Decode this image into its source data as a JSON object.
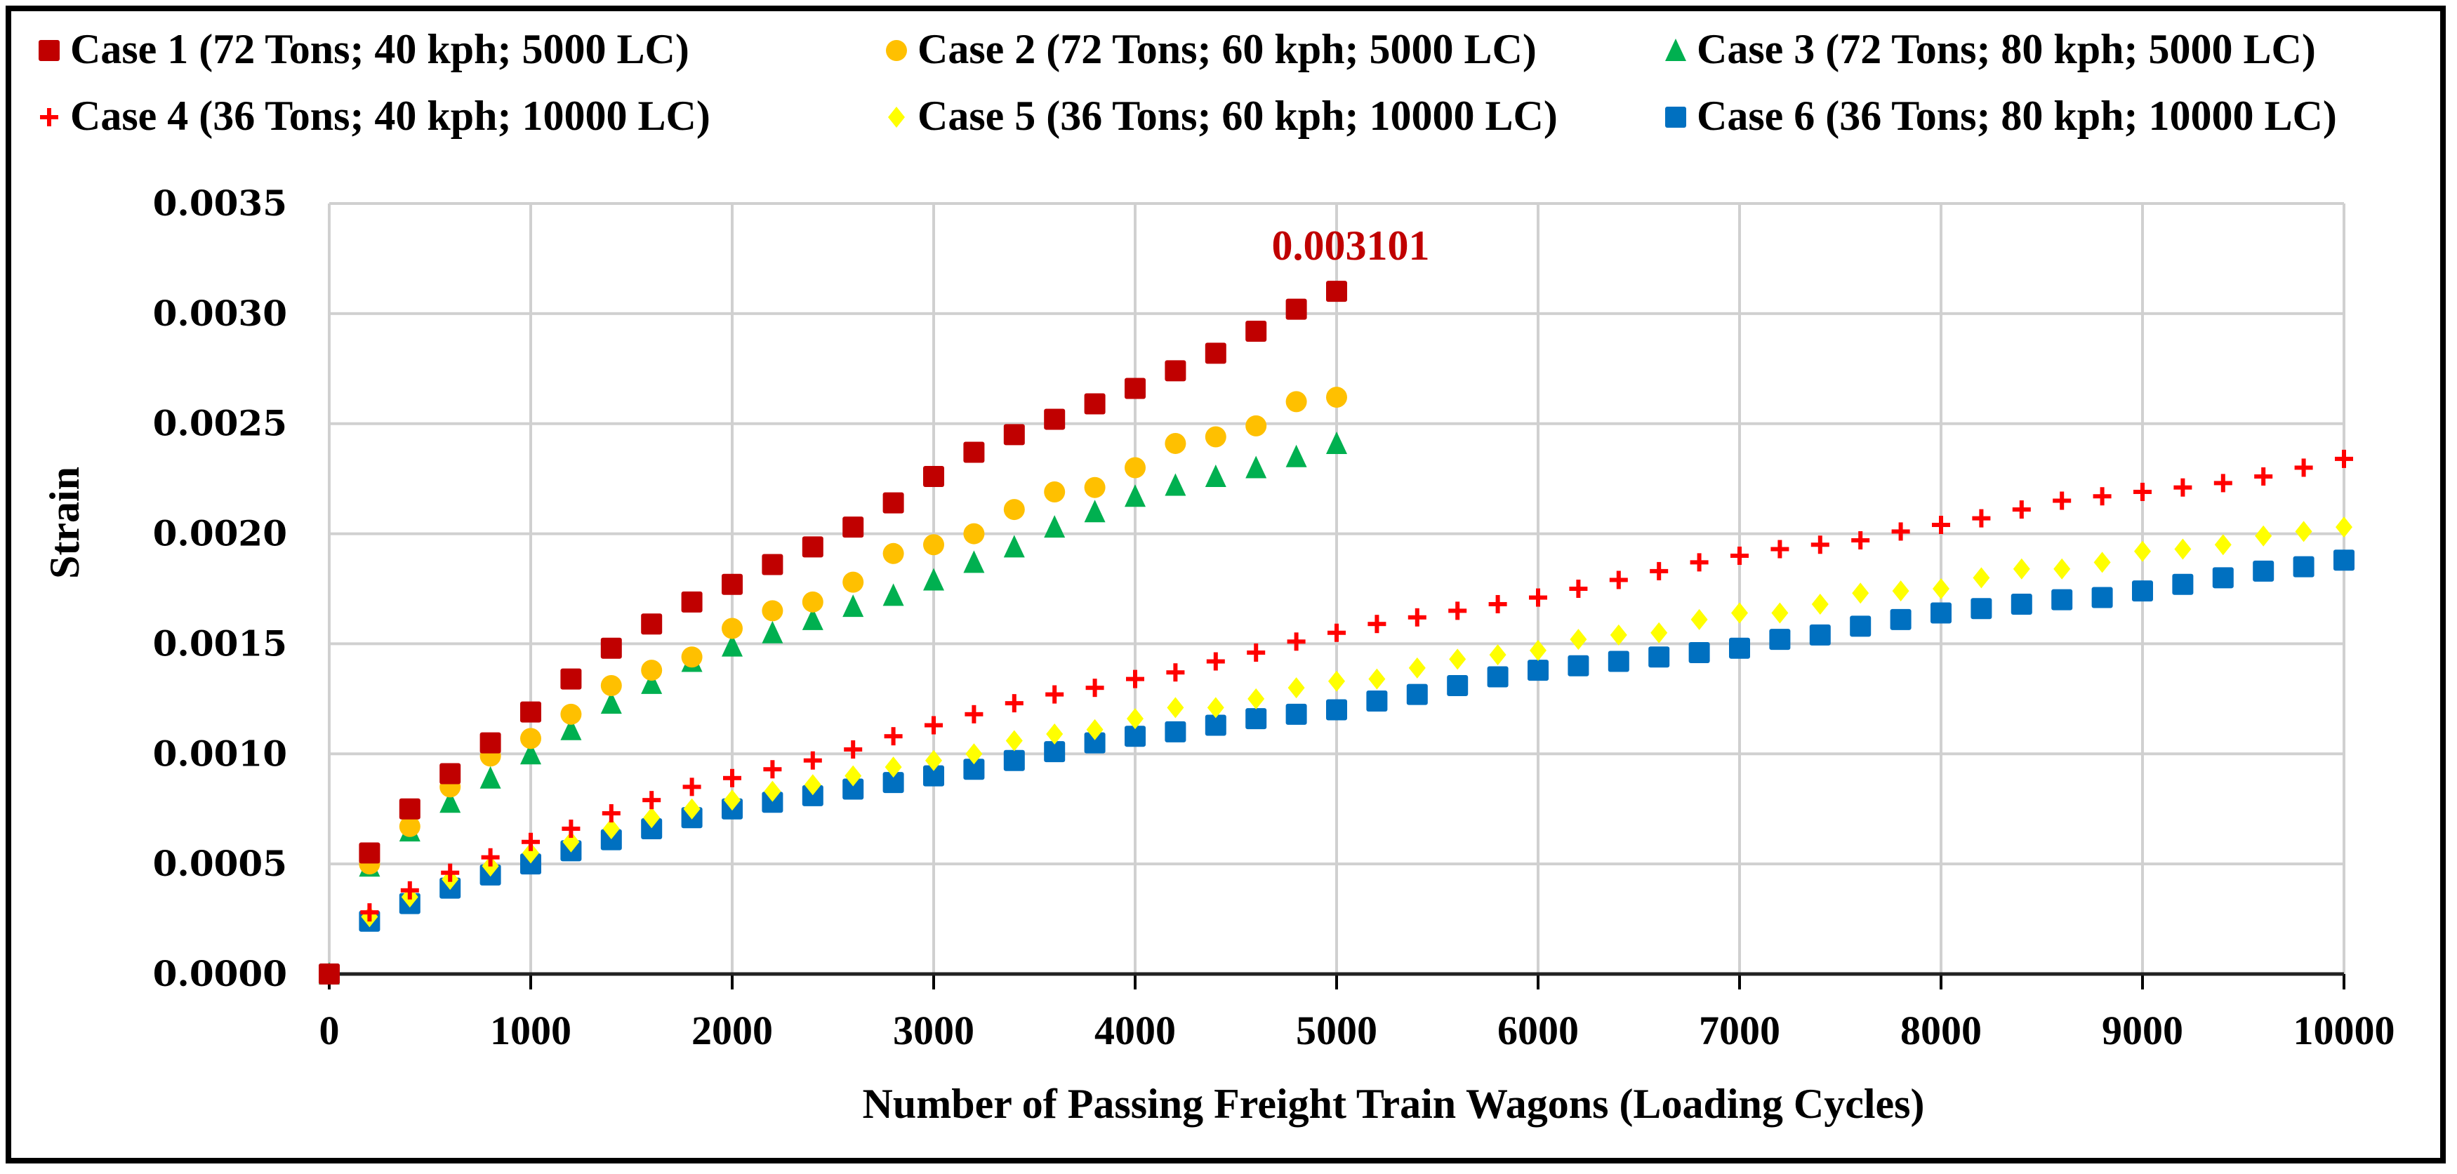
{
  "chart_data": {
    "type": "scatter",
    "title": "",
    "xlabel": "Number of Passing Freight Train Wagons (Loading Cycles)",
    "ylabel": "Strain",
    "xlim": [
      0,
      10000
    ],
    "ylim": [
      0,
      0.0035
    ],
    "x_ticks": [
      "0",
      "1000",
      "2000",
      "3000",
      "4000",
      "5000",
      "6000",
      "7000",
      "8000",
      "9000",
      "10000"
    ],
    "y_ticks": [
      "0.0000",
      "0.0005",
      "0.0010",
      "0.0015",
      "0.0020",
      "0.0025",
      "0.0030",
      "0.0035"
    ],
    "grid": true,
    "legend_position": "top",
    "annotation": {
      "text": "0.003101",
      "x": 5000,
      "y": 0.003101,
      "color": "#C00000"
    },
    "series": [
      {
        "name": "Case 1 (72 Tons; 40 kph; 5000 LC)",
        "marker": "square",
        "color": "#C00000",
        "x": [
          0,
          200,
          400,
          600,
          800,
          1000,
          1200,
          1400,
          1600,
          1800,
          2000,
          2200,
          2400,
          2600,
          2800,
          3000,
          3200,
          3400,
          3600,
          3800,
          4000,
          4200,
          4400,
          4600,
          4800,
          5000
        ],
        "y": [
          0,
          0.00055,
          0.00075,
          0.00091,
          0.00105,
          0.00119,
          0.00134,
          0.00148,
          0.00159,
          0.00169,
          0.00177,
          0.00186,
          0.00194,
          0.00203,
          0.00214,
          0.00226,
          0.00237,
          0.00245,
          0.00252,
          0.00259,
          0.00266,
          0.00274,
          0.00282,
          0.00292,
          0.00302,
          0.003101
        ]
      },
      {
        "name": "Case 2 (72 Tons; 60 kph; 5000 LC)",
        "marker": "circle",
        "color": "#FFC000",
        "x": [
          0,
          200,
          400,
          600,
          800,
          1000,
          1200,
          1400,
          1600,
          1800,
          2000,
          2200,
          2400,
          2600,
          2800,
          3000,
          3200,
          3400,
          3600,
          3800,
          4000,
          4200,
          4400,
          4600,
          4800,
          5000
        ],
        "y": [
          0,
          0.0005,
          0.00067,
          0.00085,
          0.00099,
          0.00107,
          0.00118,
          0.00131,
          0.00138,
          0.00144,
          0.00157,
          0.00165,
          0.00169,
          0.00178,
          0.00191,
          0.00195,
          0.002,
          0.00211,
          0.00219,
          0.00221,
          0.0023,
          0.00241,
          0.00244,
          0.00249,
          0.0026,
          0.00262
        ]
      },
      {
        "name": "Case 3 (72 Tons; 80 kph; 5000 LC)",
        "marker": "triangle",
        "color": "#00B050",
        "x": [
          0,
          200,
          400,
          600,
          800,
          1000,
          1200,
          1400,
          1600,
          1800,
          2000,
          2200,
          2400,
          2600,
          2800,
          3000,
          3200,
          3400,
          3600,
          3800,
          4000,
          4200,
          4400,
          4600,
          4800,
          5000
        ],
        "y": [
          0,
          0.00049,
          0.00065,
          0.00078,
          0.00089,
          0.001,
          0.00111,
          0.00123,
          0.00132,
          0.00142,
          0.00149,
          0.00155,
          0.00161,
          0.00167,
          0.00172,
          0.00179,
          0.00187,
          0.00194,
          0.00203,
          0.0021,
          0.00217,
          0.00222,
          0.00226,
          0.0023,
          0.00235,
          0.00241
        ]
      },
      {
        "name": "Case 4 (36 Tons; 40 kph; 10000 LC)",
        "marker": "plus",
        "color": "#FF0000",
        "x": [
          0,
          200,
          400,
          600,
          800,
          1000,
          1200,
          1400,
          1600,
          1800,
          2000,
          2200,
          2400,
          2600,
          2800,
          3000,
          3200,
          3400,
          3600,
          3800,
          4000,
          4200,
          4400,
          4600,
          4800,
          5000,
          5200,
          5400,
          5600,
          5800,
          6000,
          6200,
          6400,
          6600,
          6800,
          7000,
          7200,
          7400,
          7600,
          7800,
          8000,
          8200,
          8400,
          8600,
          8800,
          9000,
          9200,
          9400,
          9600,
          9800,
          10000
        ],
        "y": [
          0,
          0.00028,
          0.00038,
          0.00046,
          0.00053,
          0.0006,
          0.00066,
          0.00073,
          0.00079,
          0.00085,
          0.00089,
          0.00093,
          0.00097,
          0.00102,
          0.00108,
          0.00113,
          0.00118,
          0.00123,
          0.00127,
          0.0013,
          0.00134,
          0.00137,
          0.00142,
          0.00146,
          0.00151,
          0.00155,
          0.00159,
          0.00162,
          0.00165,
          0.00168,
          0.00171,
          0.00175,
          0.00179,
          0.00183,
          0.00187,
          0.0019,
          0.00193,
          0.00195,
          0.00197,
          0.00201,
          0.00204,
          0.00207,
          0.00211,
          0.00215,
          0.00217,
          0.00219,
          0.00221,
          0.00223,
          0.00226,
          0.0023,
          0.00234
        ]
      },
      {
        "name": "Case 5 (36 Tons; 60 kph; 10000 LC)",
        "marker": "diamond",
        "color": "#FFFF00",
        "x": [
          0,
          200,
          400,
          600,
          800,
          1000,
          1200,
          1400,
          1600,
          1800,
          2000,
          2200,
          2400,
          2600,
          2800,
          3000,
          3200,
          3400,
          3600,
          3800,
          4000,
          4200,
          4400,
          4600,
          4800,
          5000,
          5200,
          5400,
          5600,
          5800,
          6000,
          6200,
          6400,
          6600,
          6800,
          7000,
          7200,
          7400,
          7600,
          7800,
          8000,
          8200,
          8400,
          8600,
          8800,
          9000,
          9200,
          9400,
          9600,
          9800,
          10000
        ],
        "y": [
          0,
          0.00026,
          0.00035,
          0.00043,
          0.00049,
          0.00055,
          0.0006,
          0.00066,
          0.00071,
          0.00075,
          0.00079,
          0.00083,
          0.00086,
          0.0009,
          0.00094,
          0.00097,
          0.001,
          0.00106,
          0.00109,
          0.00111,
          0.00116,
          0.00121,
          0.00121,
          0.00125,
          0.0013,
          0.00133,
          0.00134,
          0.00139,
          0.00143,
          0.00145,
          0.00147,
          0.00152,
          0.00154,
          0.00155,
          0.00161,
          0.00164,
          0.00164,
          0.00168,
          0.00173,
          0.00174,
          0.00175,
          0.0018,
          0.00184,
          0.00184,
          0.00187,
          0.00192,
          0.00193,
          0.00195,
          0.00199,
          0.00201,
          0.00203
        ]
      },
      {
        "name": "Case 6 (36 Tons; 80 kph; 10000 LC)",
        "marker": "square",
        "color": "#0070C0",
        "x": [
          0,
          200,
          400,
          600,
          800,
          1000,
          1200,
          1400,
          1600,
          1800,
          2000,
          2200,
          2400,
          2600,
          2800,
          3000,
          3200,
          3400,
          3600,
          3800,
          4000,
          4200,
          4400,
          4600,
          4800,
          5000,
          5200,
          5400,
          5600,
          5800,
          6000,
          6200,
          6400,
          6600,
          6800,
          7000,
          7200,
          7400,
          7600,
          7800,
          8000,
          8200,
          8400,
          8600,
          8800,
          9000,
          9200,
          9400,
          9600,
          9800,
          10000
        ],
        "y": [
          0,
          0.00024,
          0.00032,
          0.00039,
          0.00045,
          0.0005,
          0.00056,
          0.00061,
          0.00066,
          0.00071,
          0.00075,
          0.00078,
          0.00081,
          0.00084,
          0.00087,
          0.0009,
          0.00093,
          0.00097,
          0.00101,
          0.00105,
          0.00108,
          0.0011,
          0.00113,
          0.00116,
          0.00118,
          0.0012,
          0.00124,
          0.00127,
          0.00131,
          0.00135,
          0.00138,
          0.0014,
          0.00142,
          0.00144,
          0.00146,
          0.00148,
          0.00152,
          0.00154,
          0.00158,
          0.00161,
          0.00164,
          0.00166,
          0.00168,
          0.0017,
          0.00171,
          0.00174,
          0.00177,
          0.0018,
          0.00183,
          0.00185,
          0.00188
        ]
      }
    ]
  }
}
